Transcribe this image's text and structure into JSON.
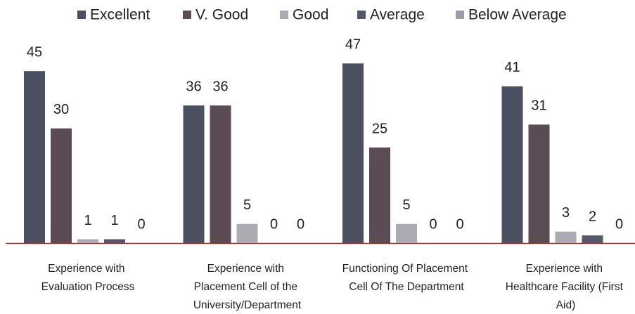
{
  "chart_data": {
    "type": "bar",
    "categories": [
      "Experience with\nEvaluation Process",
      "Experience with\nPlacement Cell of the\nUniversity/Department",
      "Functioning Of Placement\nCell Of The Department",
      "Experience with\nHealthcare Facility  (First\nAid)"
    ],
    "series": [
      {
        "name": "Excellent",
        "color": "#4b5060",
        "values": [
          45,
          36,
          47,
          41
        ]
      },
      {
        "name": "V. Good",
        "color": "#5b4b55",
        "values": [
          30,
          36,
          25,
          31
        ]
      },
      {
        "name": "Good",
        "color": "#ababb3",
        "values": [
          1,
          5,
          5,
          3
        ]
      },
      {
        "name": "Average",
        "color": "#55576b",
        "values": [
          1,
          0,
          0,
          2
        ]
      },
      {
        "name": "Below Average",
        "color": "#9c9ca8",
        "values": [
          0,
          0,
          0,
          0
        ]
      }
    ],
    "legend": "top"
  }
}
